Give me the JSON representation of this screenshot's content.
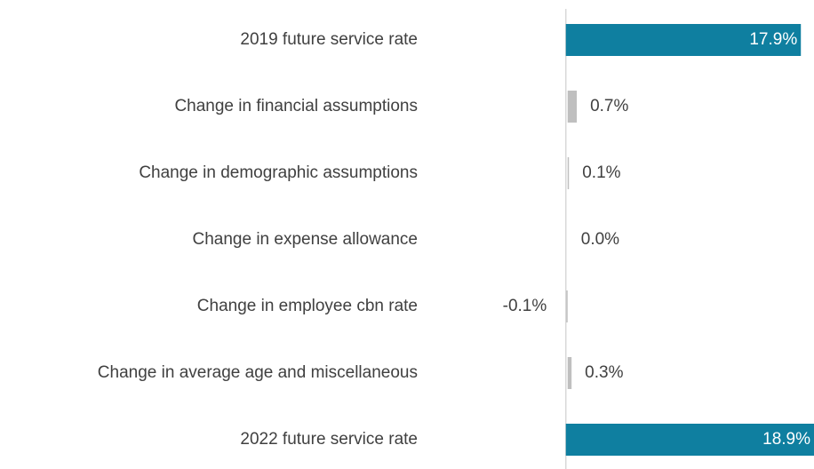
{
  "chart_data": {
    "type": "bar",
    "orientation": "horizontal",
    "categories": [
      "2019 future service rate",
      "Change in financial assumptions",
      "Change in demographic assumptions",
      "Change in expense allowance",
      "Change in employee cbn rate",
      "Change in average age and miscellaneous",
      "2022 future service rate"
    ],
    "values": [
      17.9,
      0.7,
      0.1,
      0.0,
      -0.1,
      0.3,
      18.9
    ],
    "value_labels": [
      "17.9%",
      "0.7%",
      "0.1%",
      "0.0%",
      "-0.1%",
      "0.3%",
      "18.9%"
    ],
    "colors": [
      "#0f7fa0",
      "#bfbfbf",
      "#bfbfbf",
      "#bfbfbf",
      "#bfbfbf",
      "#bfbfbf",
      "#0f7fa0"
    ],
    "xlim": [
      -10,
      18.9
    ]
  }
}
